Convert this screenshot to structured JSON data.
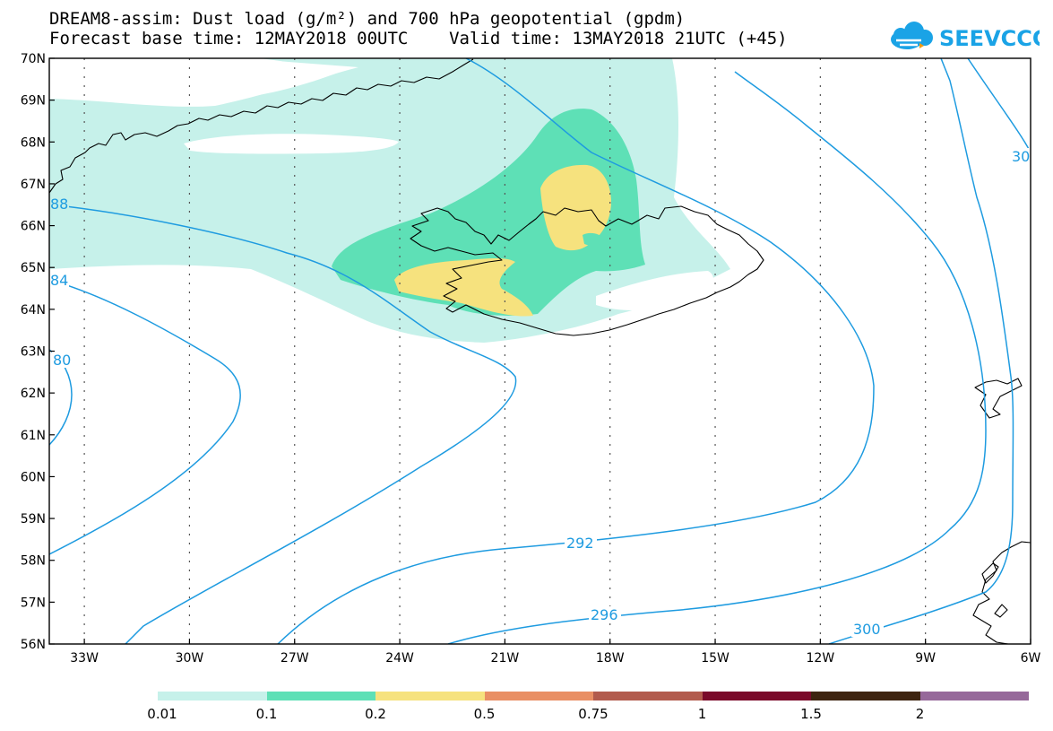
{
  "title_line1": "DREAM8-assim: Dust load (g/m²) and 700 hPa geopotential (gpdm)",
  "title_line2": "Forecast base time: 12MAY2018 00UTC    Valid time: 13MAY2018 21UTC (+45)",
  "logo_text": "SEEVCCC",
  "lat_labels": [
    "70N",
    "69N",
    "68N",
    "67N",
    "66N",
    "65N",
    "64N",
    "63N",
    "62N",
    "61N",
    "60N",
    "59N",
    "58N",
    "57N",
    "56N"
  ],
  "lon_labels": [
    "33W",
    "30W",
    "27W",
    "24W",
    "21W",
    "18W",
    "15W",
    "12W",
    "9W",
    "6W"
  ],
  "contour_labels": {
    "c288": "88",
    "c284": "84",
    "c280": "80",
    "c292": "292",
    "c296": "296",
    "c300": "300",
    "c30r": "30"
  },
  "colorbar": {
    "colors": [
      "#c6f1ea",
      "#5ee0b6",
      "#f6e27e",
      "#e98f64",
      "#b25b4d",
      "#7a0a2a",
      "#3e2410",
      "#96699a"
    ],
    "labels": [
      "0.01",
      "0.1",
      "0.2",
      "0.5",
      "0.75",
      "1",
      "1.5",
      "2"
    ]
  },
  "colors": {
    "contour": "#1e9be0",
    "coast": "#000000",
    "dust_low": "#c6f1ea",
    "dust_mid": "#5ee0b6",
    "dust_high": "#f6e27e"
  }
}
